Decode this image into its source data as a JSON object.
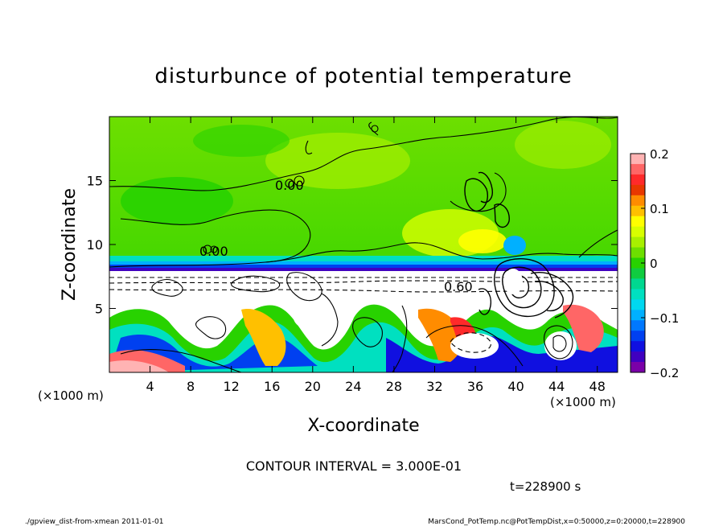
{
  "chart_data": {
    "type": "heatmap",
    "title": "disturbunce of potential temperature",
    "xlabel": "X-coordinate",
    "ylabel": "Z-coordinate",
    "x_unit_label": "(×1000 m)",
    "y_unit_label": "(×1000 m)",
    "xlim": [
      0,
      50
    ],
    "ylim": [
      0,
      20
    ],
    "x_ticks": [
      4,
      8,
      12,
      16,
      20,
      24,
      28,
      32,
      36,
      40,
      44,
      48
    ],
    "y_ticks": [
      5,
      10,
      15
    ],
    "colorbar": {
      "ticks": [
        "0.2",
        "0.1",
        "0",
        "−0.1",
        "−0.2"
      ],
      "values": [
        0.2,
        0.1,
        0,
        -0.1,
        -0.2
      ],
      "colors": [
        "#ffb3b3",
        "#ff6666",
        "#ff2a2a",
        "#e83800",
        "#ff8c00",
        "#ffc000",
        "#ffff00",
        "#d8ff00",
        "#a8f000",
        "#6ddf00",
        "#28d200",
        "#10cc40",
        "#00d890",
        "#00e0c0",
        "#00d8f0",
        "#00b0ff",
        "#0078ff",
        "#0040f0",
        "#1010e0",
        "#4000c0",
        "#7a00a8"
      ]
    },
    "contour_label": "0.60",
    "contour_labels_extra": [
      "0.00",
      "0.00",
      "0.60"
    ]
  },
  "footer": {
    "contour_interval": "CONTOUR INTERVAL = 3.000E-01",
    "time": "t=228900 s",
    "script_name": "./gpview_dist-from-xmean  2011-01-01",
    "variable_spec": "MarsCond_PotTemp.nc@PotTempDist,x=0:50000,z=0:20000,t=228900"
  },
  "colors": {
    "green_bg": "#6ddf00",
    "upper_light_green": "#a8f000",
    "band_blue": "#1010e0",
    "white_layer": "#ffffff"
  }
}
